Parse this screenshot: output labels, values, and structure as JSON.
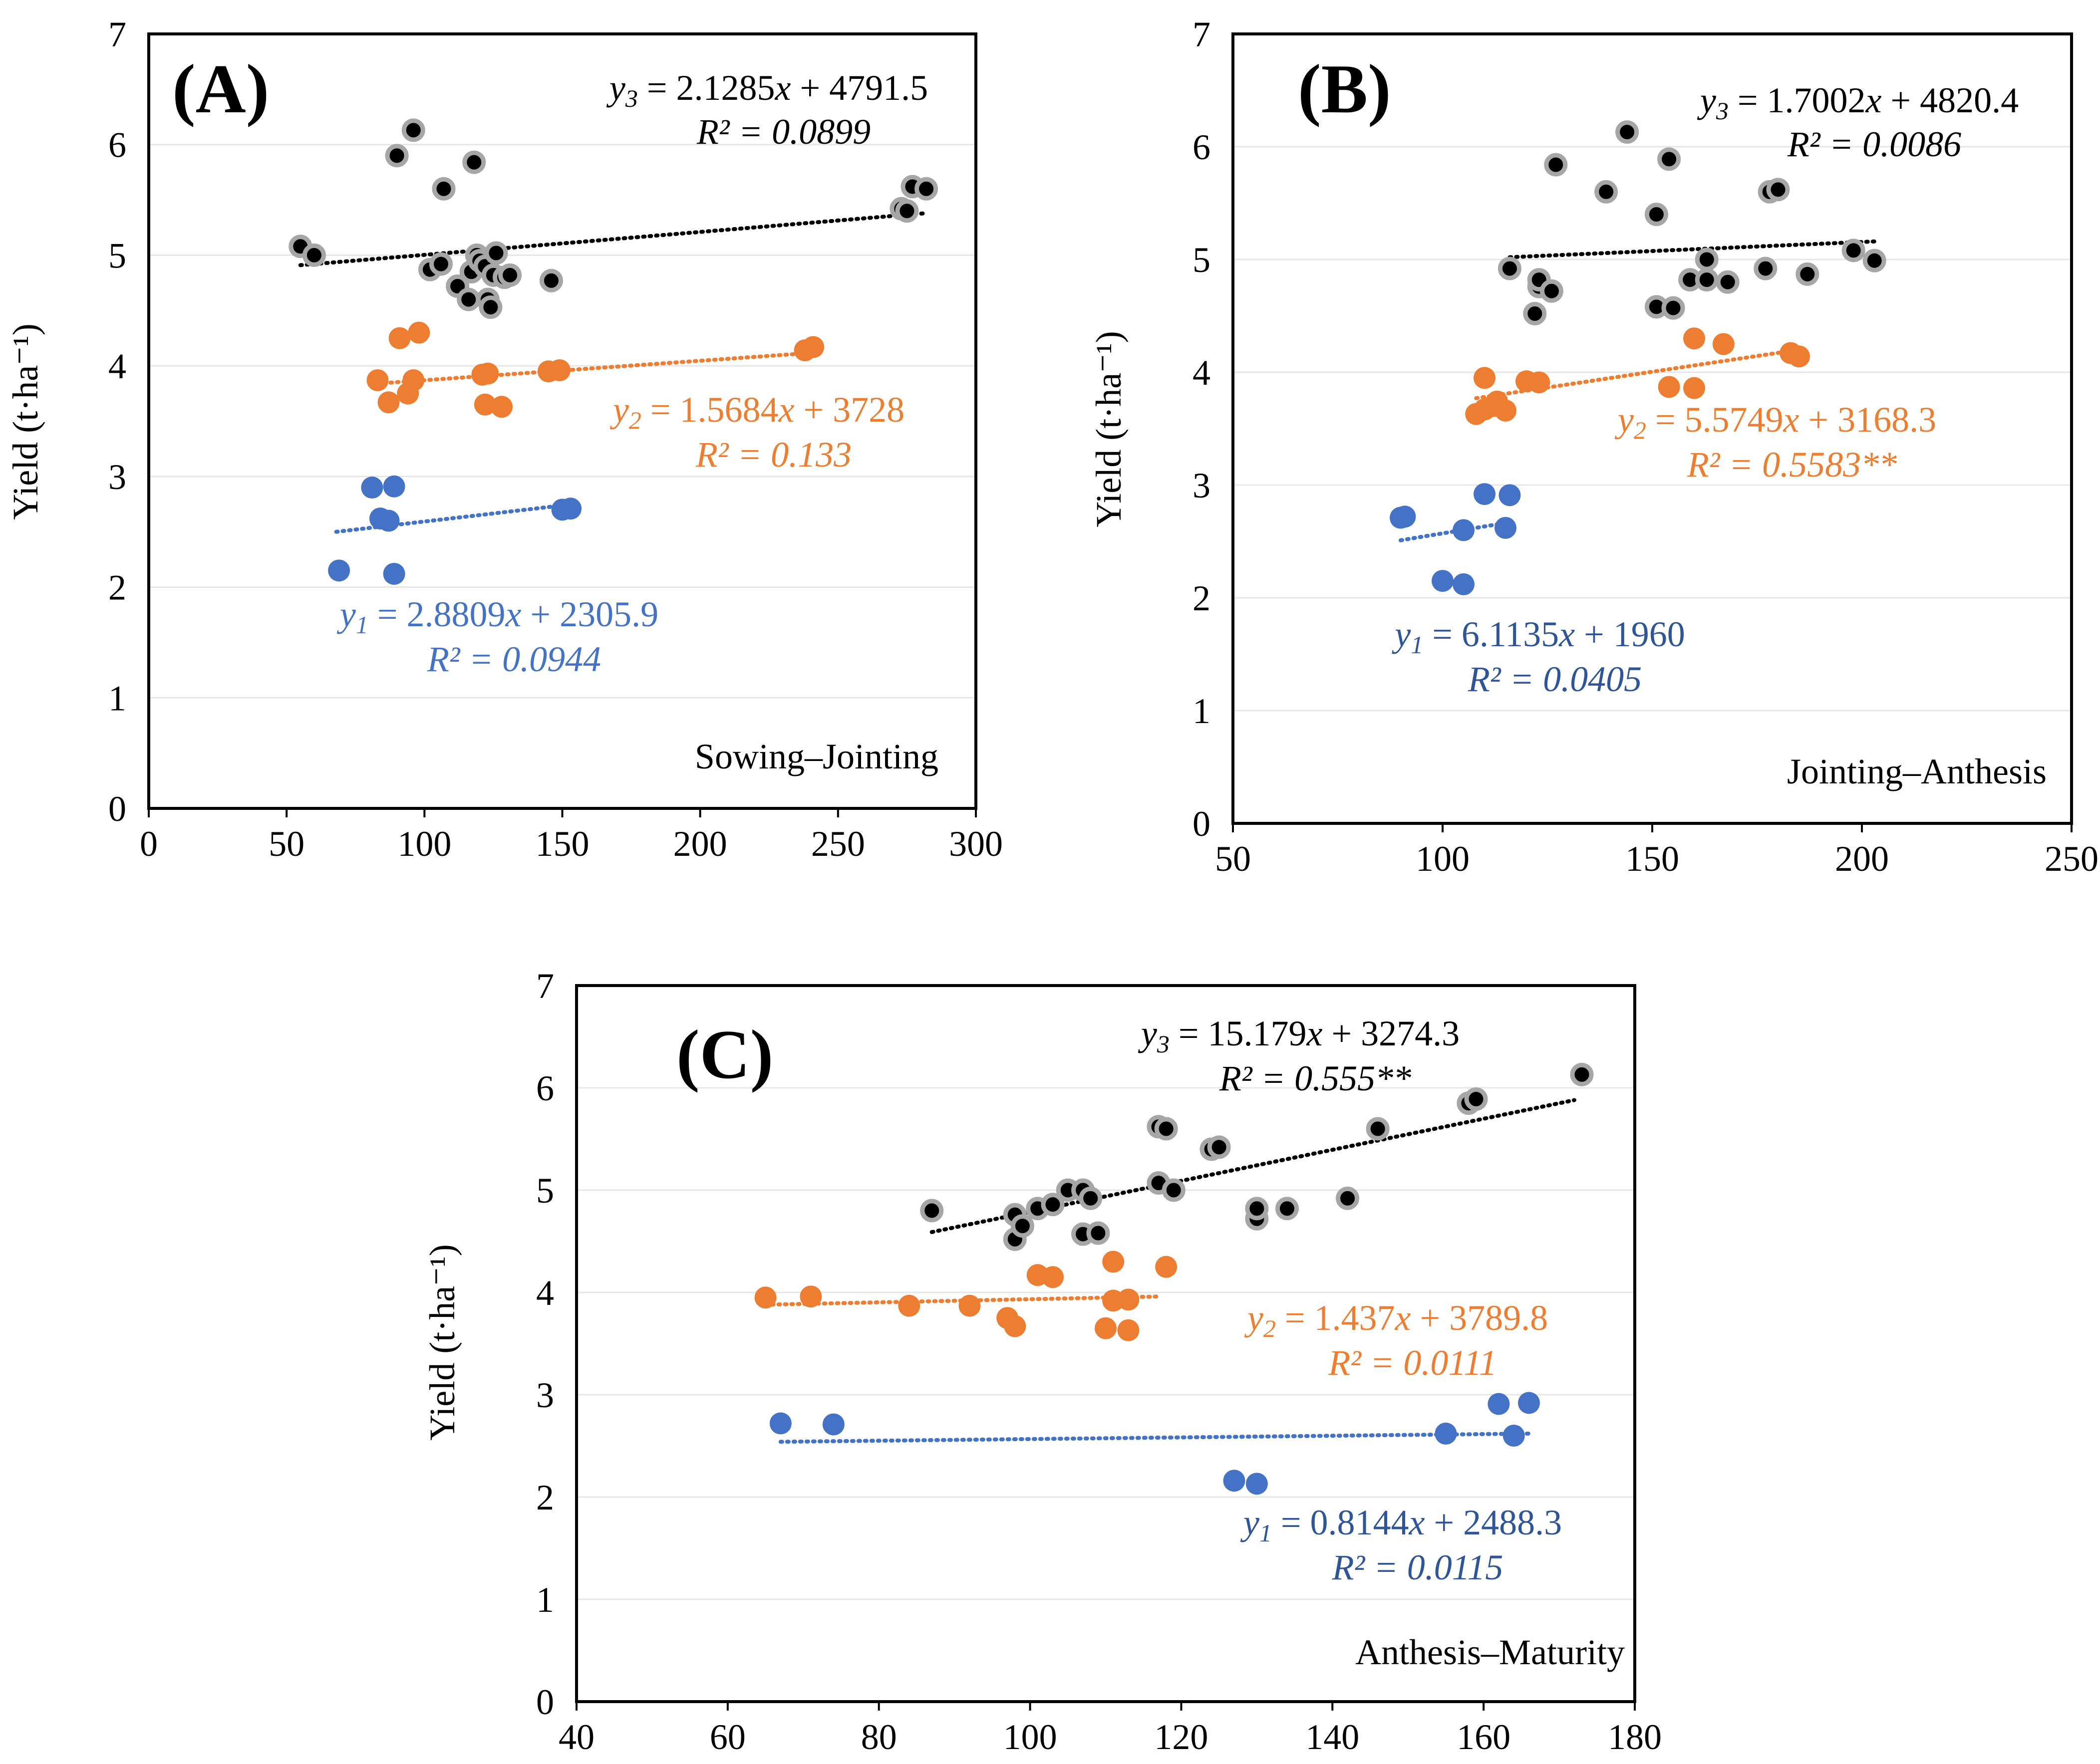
{
  "chart_data": [
    {
      "type": "scatter",
      "panel_label": "(A)",
      "stage": "Sowing–Jointing",
      "ylabel": "Yield (t·ha⁻¹)",
      "xlim": [
        0,
        300
      ],
      "ylim": [
        0,
        7
      ],
      "xticks": [
        "0",
        "50",
        "100",
        "150",
        "200",
        "250",
        "300"
      ],
      "yticks": [
        "0",
        "1",
        "2",
        "3",
        "4",
        "5",
        "6",
        "7"
      ],
      "series": [
        {
          "name": "y1",
          "color": "#4472C4",
          "points": [
            [
              69,
              2.15
            ],
            [
              81,
              2.9
            ],
            [
              84,
              2.62
            ],
            [
              87,
              2.6
            ],
            [
              89,
              2.91
            ],
            [
              89,
              2.12
            ],
            [
              150,
              2.7
            ],
            [
              153,
              2.71
            ]
          ],
          "trend": {
            "x": [
              68,
              154
            ],
            "y": [
              2.5,
              2.75
            ]
          },
          "eq_var": "y",
          "eq_sub": "1",
          "eq_rhs": "2.8809",
          "eq_tail": " + 2305.9",
          "r2": "R² = 0.0944"
        },
        {
          "name": "y2",
          "color": "#ED7D31",
          "points": [
            [
              83,
              3.87
            ],
            [
              87,
              3.67
            ],
            [
              91,
              4.25
            ],
            [
              94,
              3.75
            ],
            [
              96,
              3.87
            ],
            [
              98,
              4.3
            ],
            [
              121,
              3.92
            ],
            [
              123,
              3.93
            ],
            [
              122,
              3.65
            ],
            [
              128,
              3.63
            ],
            [
              145,
              3.95
            ],
            [
              149,
              3.96
            ],
            [
              238,
              4.14
            ],
            [
              241,
              4.17
            ]
          ],
          "trend": {
            "x": [
              83,
              242
            ],
            "y": [
              3.84,
              4.12
            ]
          },
          "eq_var": "y",
          "eq_sub": "2",
          "eq_rhs": "1.5684",
          "eq_tail": " + 3728",
          "r2": "R² = 0.133"
        },
        {
          "name": "y3",
          "color": "#000000",
          "points": [
            [
              55,
              5.08
            ],
            [
              60,
              5.0
            ],
            [
              90,
              5.9
            ],
            [
              96,
              6.13
            ],
            [
              102,
              4.87
            ],
            [
              106,
              4.92
            ],
            [
              107,
              5.6
            ],
            [
              112,
              4.72
            ],
            [
              116,
              4.6
            ],
            [
              117,
              4.85
            ],
            [
              118,
              5.84
            ],
            [
              119,
              5.0
            ],
            [
              120,
              4.95
            ],
            [
              122,
              4.9
            ],
            [
              123,
              4.6
            ],
            [
              124,
              4.53
            ],
            [
              125,
              4.82
            ],
            [
              126,
              5.02
            ],
            [
              129,
              4.8
            ],
            [
              131,
              4.82
            ],
            [
              146,
              4.77
            ],
            [
              273,
              5.42
            ],
            [
              275,
              5.4
            ],
            [
              277,
              5.62
            ],
            [
              282,
              5.6
            ]
          ],
          "trend": {
            "x": [
              55,
              282
            ],
            "y": [
              4.91,
              5.38
            ]
          },
          "eq_var": "y",
          "eq_sub": "3",
          "eq_rhs": "2.1285",
          "eq_tail": " + 4791.5",
          "r2": "R² = 0.0899"
        }
      ]
    },
    {
      "type": "scatter",
      "panel_label": "(B)",
      "stage": "Jointing–Anthesis",
      "ylabel": "Yield (t·ha⁻¹)",
      "xlim": [
        50,
        250
      ],
      "ylim": [
        0,
        7
      ],
      "xticks": [
        "50",
        "100",
        "150",
        "200",
        "250"
      ],
      "yticks": [
        "0",
        "1",
        "2",
        "3",
        "4",
        "5",
        "6",
        "7"
      ],
      "series": [
        {
          "name": "y1",
          "color": "#4472C4",
          "points": [
            [
              90,
              2.71
            ],
            [
              91,
              2.72
            ],
            [
              100,
              2.15
            ],
            [
              105,
              2.12
            ],
            [
              105,
              2.6
            ],
            [
              110,
              2.92
            ],
            [
              115,
              2.62
            ],
            [
              116,
              2.91
            ]
          ],
          "trend": {
            "x": [
              90,
              116
            ],
            "y": [
              2.51,
              2.67
            ]
          },
          "eq_var": "y",
          "eq_sub": "1",
          "eq_rhs": "6.1135",
          "eq_tail": " + 1960",
          "r2": "R² = 0.0405"
        },
        {
          "name": "y2",
          "color": "#ED7D31",
          "points": [
            [
              108,
              3.63
            ],
            [
              110,
              3.67
            ],
            [
              110,
              3.95
            ],
            [
              112,
              3.7
            ],
            [
              113,
              3.74
            ],
            [
              115,
              3.66
            ],
            [
              120,
              3.92
            ],
            [
              123,
              3.91
            ],
            [
              154,
              3.87
            ],
            [
              160,
              3.86
            ],
            [
              160,
              4.3
            ],
            [
              167,
              4.25
            ],
            [
              183,
              4.17
            ],
            [
              185,
              4.14
            ]
          ],
          "trend": {
            "x": [
              108,
              185
            ],
            "y": [
              3.77,
              4.2
            ]
          },
          "eq_var": "y",
          "eq_sub": "2",
          "eq_rhs": "5.5749",
          "eq_tail": " + 3168.3",
          "r2": "R² = 0.5583**"
        },
        {
          "name": "y3",
          "color": "#000000",
          "points": [
            [
              116,
              4.92
            ],
            [
              122,
              4.52
            ],
            [
              123,
              4.76
            ],
            [
              123,
              4.82
            ],
            [
              126,
              4.72
            ],
            [
              127,
              5.84
            ],
            [
              139,
              5.6
            ],
            [
              144,
              6.13
            ],
            [
              151,
              4.58
            ],
            [
              151,
              5.4
            ],
            [
              154,
              5.89
            ],
            [
              155,
              4.57
            ],
            [
              159,
              4.82
            ],
            [
              163,
              5.0
            ],
            [
              163,
              4.82
            ],
            [
              168,
              4.8
            ],
            [
              177,
              4.92
            ],
            [
              178,
              5.6
            ],
            [
              180,
              5.62
            ],
            [
              187,
              4.87
            ],
            [
              198,
              5.08
            ],
            [
              203,
              4.99
            ]
          ],
          "trend": {
            "x": [
              116,
              203
            ],
            "y": [
              5.02,
              5.16
            ]
          },
          "eq_var": "y",
          "eq_sub": "3",
          "eq_rhs": "1.7002",
          "eq_tail": " + 4820.4",
          "r2": "R² = 0.0086"
        }
      ]
    },
    {
      "type": "scatter",
      "panel_label": "(C)",
      "stage": "Anthesis–Maturity",
      "ylabel": "Yield (t·ha⁻¹)",
      "xlim": [
        40,
        180
      ],
      "ylim": [
        0,
        7
      ],
      "xticks": [
        "40",
        "60",
        "80",
        "100",
        "120",
        "140",
        "160",
        "180"
      ],
      "yticks": [
        "0",
        "1",
        "2",
        "3",
        "4",
        "5",
        "6",
        "7"
      ],
      "series": [
        {
          "name": "y1",
          "color": "#4472C4",
          "points": [
            [
              67,
              2.72
            ],
            [
              74,
              2.71
            ],
            [
              127,
              2.16
            ],
            [
              130,
              2.13
            ],
            [
              155,
              2.62
            ],
            [
              162,
              2.91
            ],
            [
              164,
              2.6
            ],
            [
              166,
              2.92
            ]
          ],
          "trend": {
            "x": [
              67,
              166
            ],
            "y": [
              2.54,
              2.62
            ]
          },
          "eq_var": "y",
          "eq_sub": "1",
          "eq_rhs": "0.8144",
          "eq_tail": " + 2488.3",
          "r2": "R² = 0.0115"
        },
        {
          "name": "y2",
          "color": "#ED7D31",
          "points": [
            [
              65,
              3.95
            ],
            [
              71,
              3.96
            ],
            [
              84,
              3.87
            ],
            [
              92,
              3.87
            ],
            [
              97,
              3.75
            ],
            [
              98,
              3.67
            ],
            [
              101,
              4.17
            ],
            [
              103,
              4.15
            ],
            [
              110,
              3.65
            ],
            [
              111,
              3.92
            ],
            [
              111,
              4.3
            ],
            [
              113,
              3.93
            ],
            [
              113,
              3.63
            ],
            [
              118,
              4.25
            ]
          ],
          "trend": {
            "x": [
              65,
              117
            ],
            "y": [
              3.88,
              3.96
            ]
          },
          "eq_var": "y",
          "eq_sub": "2",
          "eq_rhs": "1.437",
          "eq_tail": " + 3789.8",
          "r2": "R² = 0.0111"
        },
        {
          "name": "y3",
          "color": "#000000",
          "points": [
            [
              87,
              4.8
            ],
            [
              98,
              4.52
            ],
            [
              98,
              4.76
            ],
            [
              99,
              4.65
            ],
            [
              101,
              4.82
            ],
            [
              103,
              4.86
            ],
            [
              105,
              5.0
            ],
            [
              107,
              4.57
            ],
            [
              107,
              5.0
            ],
            [
              108,
              4.92
            ],
            [
              109,
              4.58
            ],
            [
              117,
              5.07
            ],
            [
              117,
              5.62
            ],
            [
              118,
              5.6
            ],
            [
              119,
              5.0
            ],
            [
              124,
              5.4
            ],
            [
              125,
              5.42
            ],
            [
              130,
              4.72
            ],
            [
              130,
              4.82
            ],
            [
              134,
              4.82
            ],
            [
              142,
              4.92
            ],
            [
              146,
              5.6
            ],
            [
              158,
              5.85
            ],
            [
              159,
              5.89
            ],
            [
              173,
              6.13
            ]
          ],
          "trend": {
            "x": [
              87,
              172
            ],
            "y": [
              4.59,
              5.88
            ]
          },
          "eq_var": "y",
          "eq_sub": "3",
          "eq_rhs": "15.179",
          "eq_tail": " + 3274.3",
          "r2": "R² = 0.555**"
        }
      ]
    }
  ]
}
